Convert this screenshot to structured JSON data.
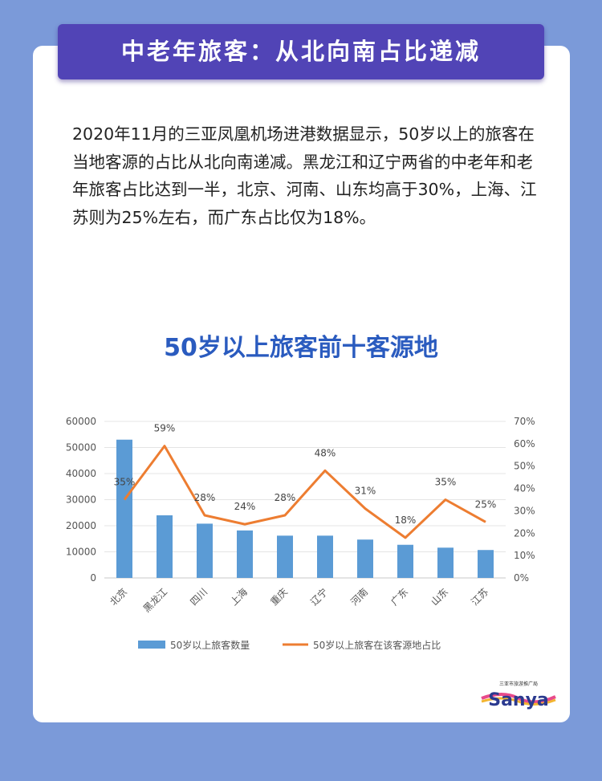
{
  "banner_title": "中老年旅客：从北向南占比递减",
  "paragraph": "2020年11月的三亚凤凰机场进港数据显示，50岁以上的旅客在当地客源的占比从北向南递减。黑龙江和辽宁两省的中老年和老年旅客占比达到一半，北京、河南、山东均高于30%，上海、江苏则为25%左右，而广东占比仅为18%。",
  "logo": {
    "text": "Sanya",
    "subtitle": "三亚市旅游推广局"
  },
  "colors": {
    "background": "#7b9ad9",
    "banner": "#5144b6",
    "bar": "#5b9bd5",
    "line": "#ed7d31",
    "title": "#2a5bbf"
  },
  "chart_data": {
    "type": "bar+line",
    "title": "50岁以上旅客前十客源地",
    "categories": [
      "北京",
      "黑龙江",
      "四川",
      "上海",
      "重庆",
      "辽宁",
      "河南",
      "广东",
      "山东",
      "江苏"
    ],
    "series": [
      {
        "name": "50岁以上旅客数量",
        "type": "bar",
        "axis": "left",
        "values": [
          53000,
          24000,
          20800,
          18200,
          16200,
          16200,
          14700,
          12700,
          11600,
          10700
        ]
      },
      {
        "name": "50岁以上旅客在该客源地占比",
        "type": "line",
        "axis": "right",
        "values": [
          35,
          59,
          28,
          24,
          28,
          48,
          31,
          18,
          35,
          25
        ],
        "labels": [
          "35%",
          "59%",
          "28%",
          "24%",
          "28%",
          "48%",
          "31%",
          "18%",
          "35%",
          "25%"
        ]
      }
    ],
    "left_axis": {
      "range": [
        0,
        60000
      ],
      "ticks": [
        "0",
        "10000",
        "20000",
        "30000",
        "40000",
        "50000",
        "60000"
      ]
    },
    "right_axis": {
      "range": [
        0,
        70
      ],
      "ticks": [
        "0%",
        "10%",
        "20%",
        "30%",
        "40%",
        "50%",
        "60%",
        "70%"
      ]
    },
    "grid": true,
    "legend": "bottom"
  }
}
